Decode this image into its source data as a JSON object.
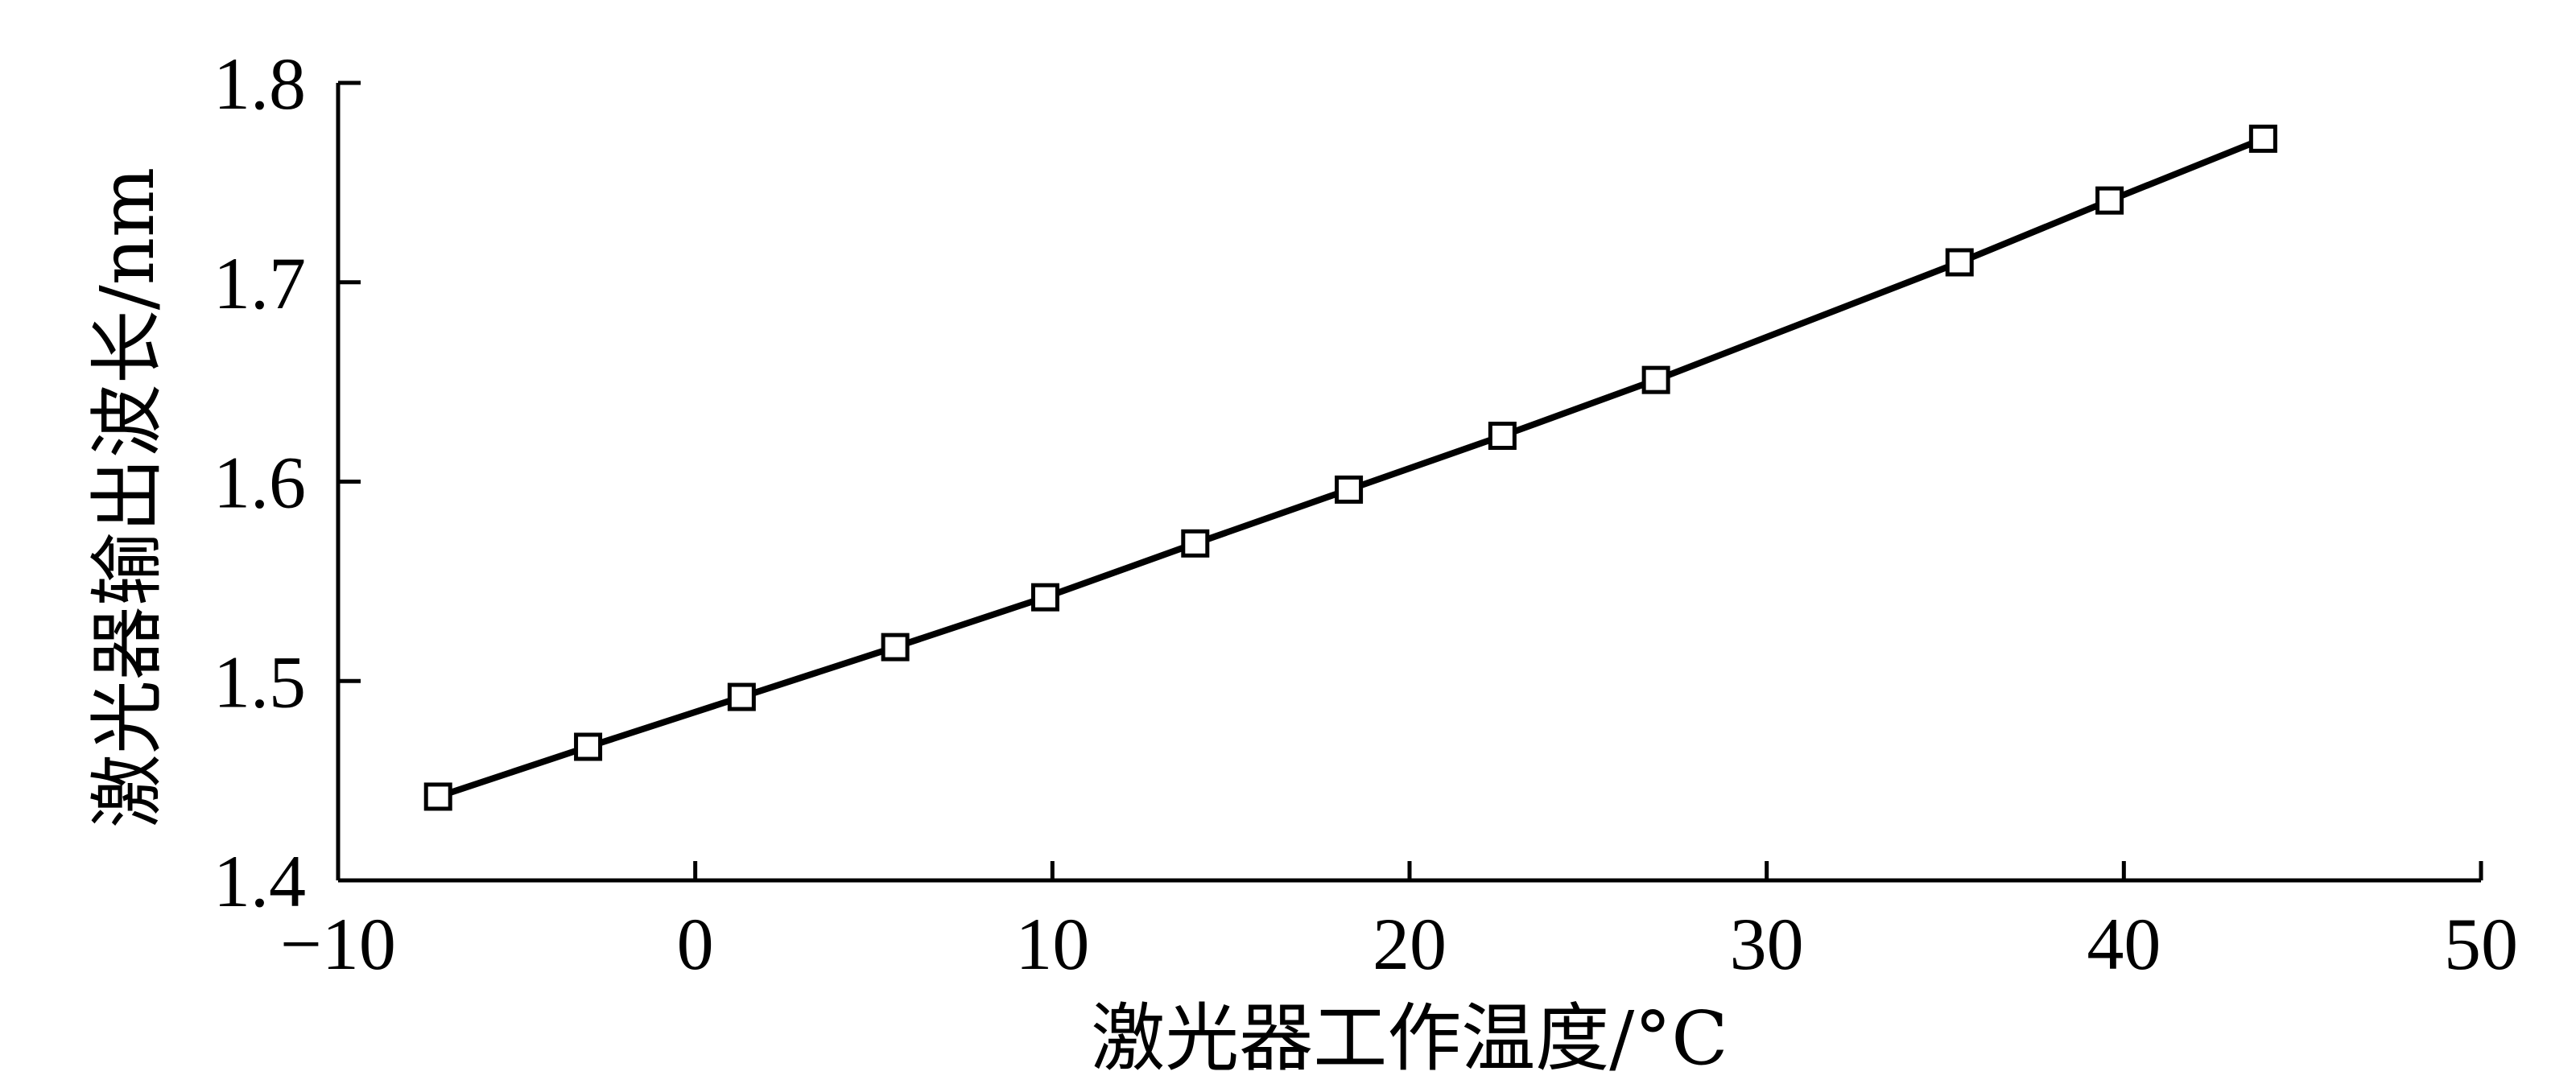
{
  "chart_data": {
    "type": "line",
    "title": "",
    "xlabel": "激光器工作温度/°C",
    "ylabel": "激光器输出波长/nm",
    "xlim": [
      -10,
      50
    ],
    "ylim": [
      1.4,
      1.8
    ],
    "xticks": [
      -10,
      0,
      10,
      20,
      30,
      40,
      50
    ],
    "xtick_labels": [
      "−10",
      "0",
      "10",
      "20",
      "30",
      "40",
      "50"
    ],
    "yticks": [
      1.4,
      1.5,
      1.6,
      1.7,
      1.8
    ],
    "ytick_labels": [
      "1.4",
      "1.5",
      "1.6",
      "1.7",
      "1.8"
    ],
    "grid": false,
    "legend": "none",
    "series": [
      {
        "marker": "open-square",
        "color": "#000000",
        "x": [
          -7.2,
          -3.0,
          1.3,
          5.6,
          9.8,
          14.0,
          18.3,
          22.6,
          26.9,
          35.4,
          39.6,
          43.9
        ],
        "y": [
          1.442,
          1.467,
          1.492,
          1.517,
          1.542,
          1.569,
          1.596,
          1.623,
          1.651,
          1.71,
          1.741,
          1.772
        ]
      }
    ]
  }
}
